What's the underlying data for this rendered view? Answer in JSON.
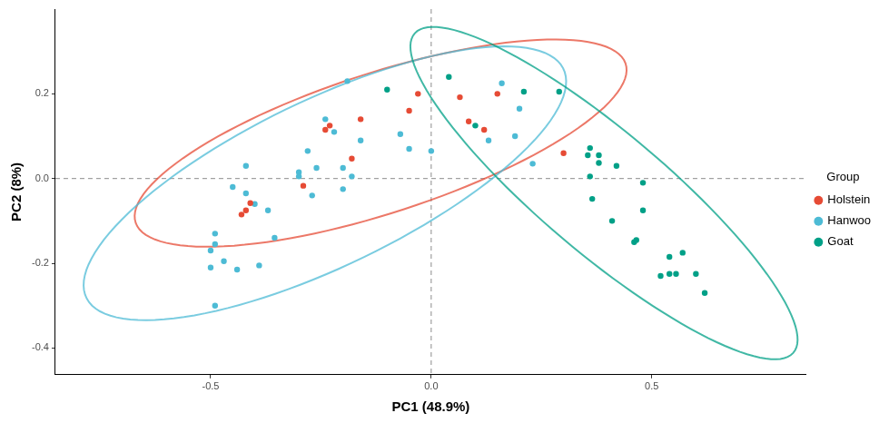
{
  "chart_data": {
    "type": "scatter",
    "x_label": "PC1 (48.9%)",
    "y_label": "PC2 (8%)",
    "legend_title": "Group",
    "legend": "right",
    "grid": false,
    "marker": "circle",
    "xlim": [
      -0.852,
      0.85
    ],
    "ylim": [
      -0.463,
      0.4
    ],
    "xticks": [
      -0.5,
      {
        "value": 0,
        "label": "0.0"
      },
      0.5
    ],
    "yticks": [
      -0.4,
      -0.2,
      {
        "value": 0,
        "label": "0.0"
      },
      0.2
    ],
    "series": [
      {
        "name": "Holstein",
        "color": "#E64B35",
        "values": [
          [
            -0.43,
            -0.085
          ],
          [
            -0.42,
            -0.075
          ],
          [
            -0.41,
            -0.058
          ],
          [
            -0.29,
            -0.017
          ],
          [
            -0.24,
            0.115
          ],
          [
            -0.23,
            0.125
          ],
          [
            -0.16,
            0.14
          ],
          [
            -0.18,
            0.047
          ],
          [
            -0.05,
            0.16
          ],
          [
            -0.03,
            0.2
          ],
          [
            0.065,
            0.192
          ],
          [
            0.085,
            0.135
          ],
          [
            0.12,
            0.115
          ],
          [
            0.15,
            0.2
          ],
          [
            0.3,
            0.06
          ]
        ]
      },
      {
        "name": "Hanwoo",
        "color": "#4DBBD5",
        "values": [
          [
            -0.49,
            -0.3
          ],
          [
            -0.5,
            -0.21
          ],
          [
            -0.5,
            -0.17
          ],
          [
            -0.49,
            -0.13
          ],
          [
            -0.49,
            -0.155
          ],
          [
            -0.47,
            -0.195
          ],
          [
            -0.44,
            -0.215
          ],
          [
            -0.45,
            -0.02
          ],
          [
            -0.42,
            0.03
          ],
          [
            -0.42,
            -0.035
          ],
          [
            -0.4,
            -0.06
          ],
          [
            -0.39,
            -0.205
          ],
          [
            -0.37,
            -0.075
          ],
          [
            -0.355,
            -0.14
          ],
          [
            -0.3,
            0.015
          ],
          [
            -0.3,
            0.005
          ],
          [
            -0.28,
            0.065
          ],
          [
            -0.27,
            -0.04
          ],
          [
            -0.26,
            0.025
          ],
          [
            -0.24,
            0.14
          ],
          [
            -0.22,
            0.11
          ],
          [
            -0.2,
            -0.025
          ],
          [
            -0.2,
            0.025
          ],
          [
            -0.18,
            0.005
          ],
          [
            -0.19,
            0.23
          ],
          [
            -0.16,
            0.09
          ],
          [
            -0.07,
            0.105
          ],
          [
            -0.05,
            0.07
          ],
          [
            0,
            0.065
          ],
          [
            0.13,
            0.09
          ],
          [
            0.16,
            0.225
          ],
          [
            0.19,
            0.1
          ],
          [
            0.2,
            0.165
          ],
          [
            0.23,
            0.035
          ]
        ]
      },
      {
        "name": "Goat",
        "color": "#00A087",
        "values": [
          [
            -0.1,
            0.21
          ],
          [
            0.04,
            0.24
          ],
          [
            0.1,
            0.125
          ],
          [
            0.21,
            0.205
          ],
          [
            0.29,
            0.205
          ],
          [
            0.36,
            0.072
          ],
          [
            0.355,
            0.055
          ],
          [
            0.36,
            0.005
          ],
          [
            0.365,
            -0.048
          ],
          [
            0.38,
            0.055
          ],
          [
            0.38,
            0.037
          ],
          [
            0.41,
            -0.1
          ],
          [
            0.42,
            0.03
          ],
          [
            0.46,
            -0.15
          ],
          [
            0.465,
            -0.145
          ],
          [
            0.48,
            -0.01
          ],
          [
            0.48,
            -0.075
          ],
          [
            0.52,
            -0.23
          ],
          [
            0.54,
            -0.185
          ],
          [
            0.54,
            -0.225
          ],
          [
            0.555,
            -0.225
          ],
          [
            0.57,
            -0.175
          ],
          [
            0.6,
            -0.225
          ],
          [
            0.62,
            -0.27
          ]
        ]
      }
    ]
  }
}
